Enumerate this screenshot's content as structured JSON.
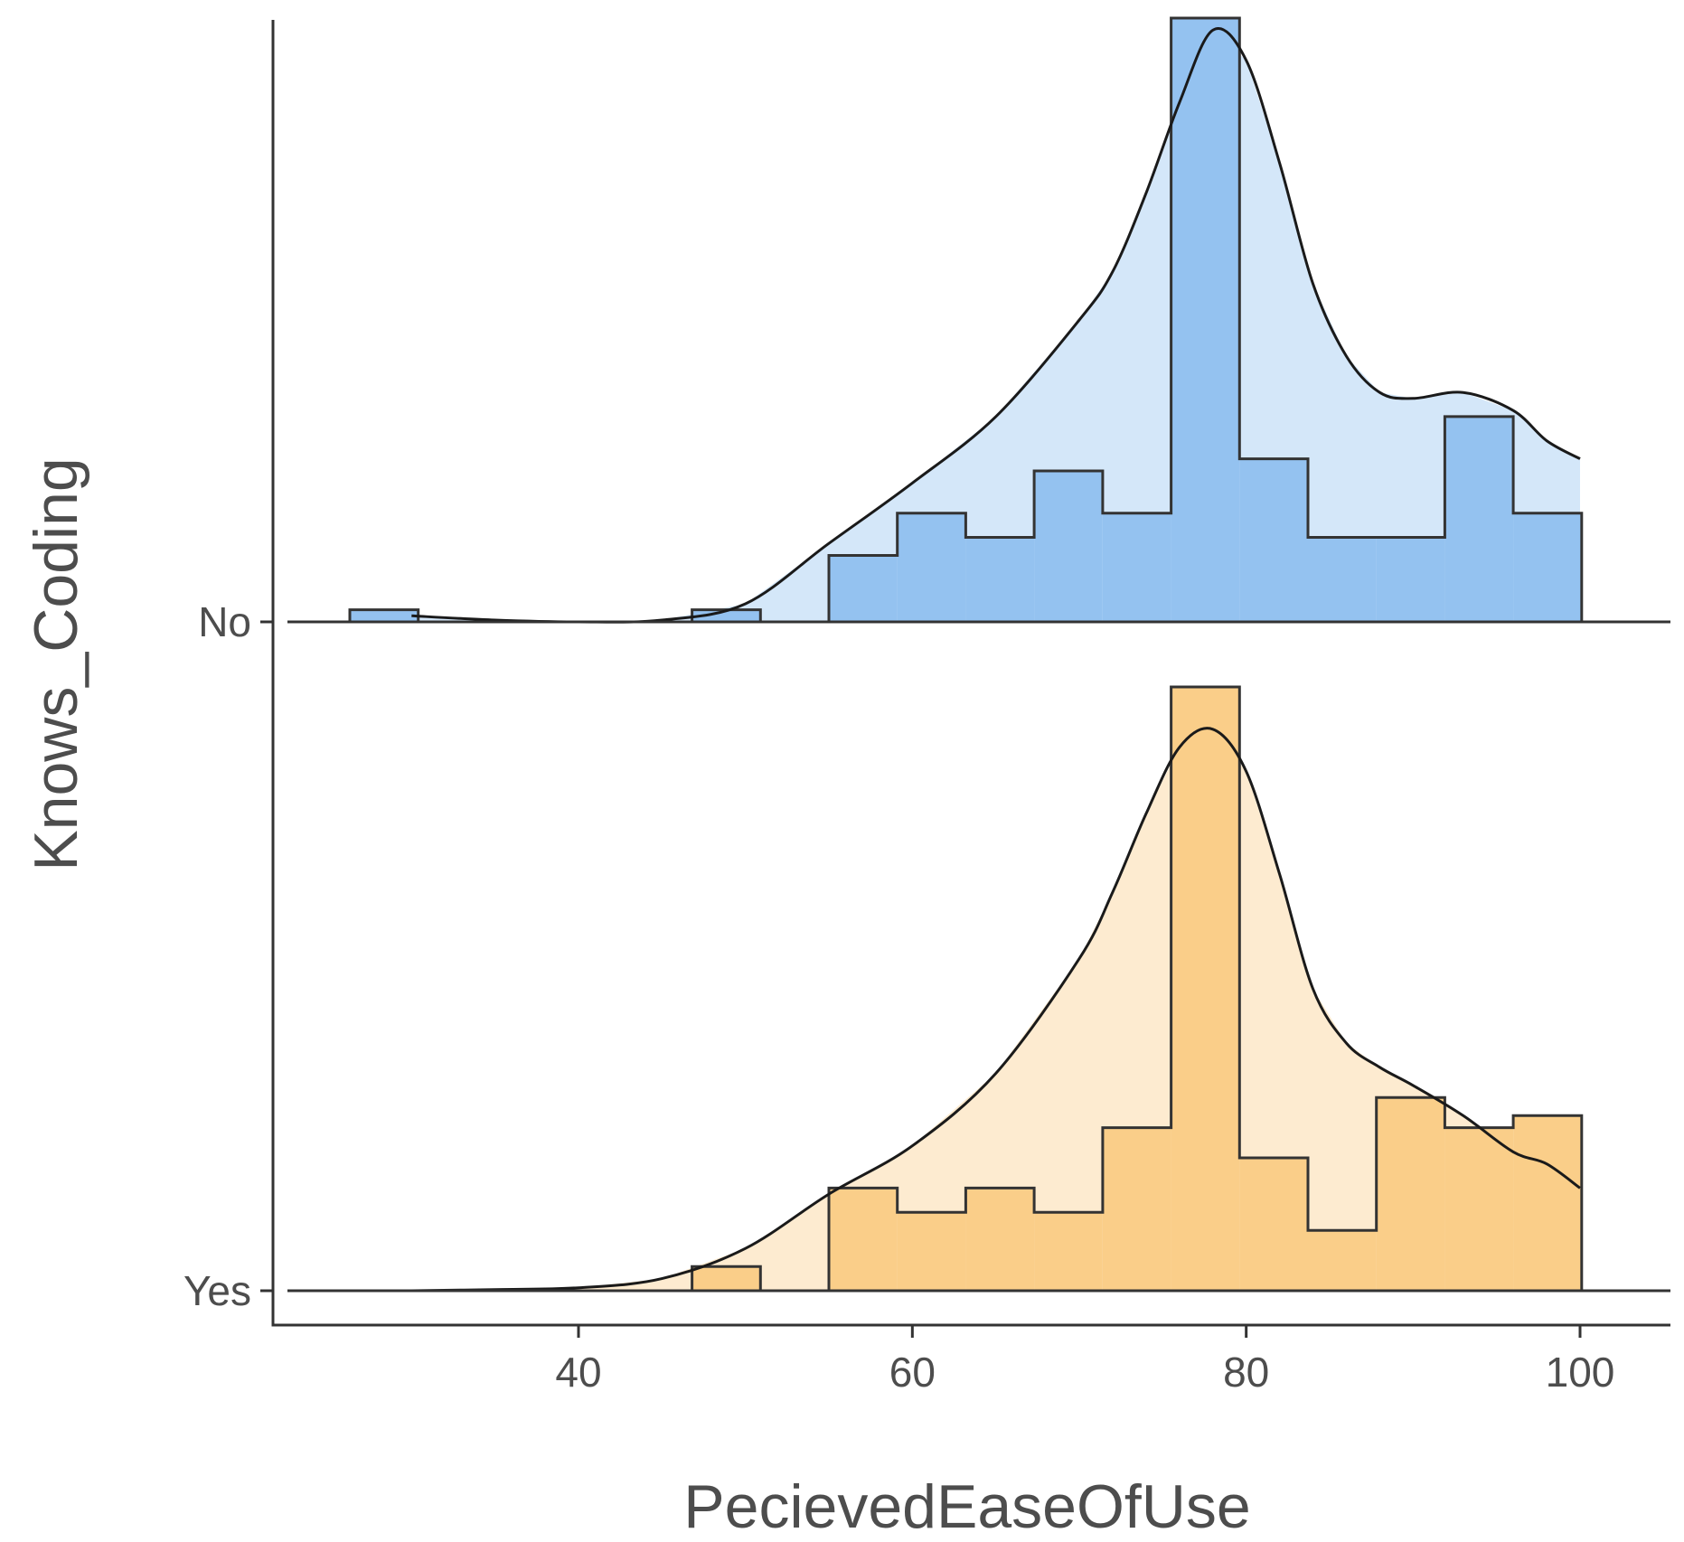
{
  "chart_data": {
    "type": "ridgeline histogram with density",
    "xlabel": "PecievedEaseOfUse",
    "ylabel": "Knows_Coding",
    "x_ticks": [
      40,
      60,
      80,
      100
    ],
    "xlim": [
      22,
      105
    ],
    "grid": false,
    "legend": "none",
    "bin_width": 4.1,
    "groups": [
      {
        "name": "No",
        "color": "#66a8ea",
        "bins_left": [
          26.3,
          30.4,
          34.5,
          38.6,
          42.7,
          46.8,
          50.9,
          55.0,
          59.1,
          63.2,
          67.3,
          71.4,
          75.5,
          79.6,
          83.7,
          87.8,
          91.9,
          96.0
        ],
        "bin_heights": [
          0.02,
          0.0,
          0.0,
          0.0,
          0.0,
          0.02,
          0.0,
          0.11,
          0.18,
          0.14,
          0.25,
          0.18,
          1.0,
          0.27,
          0.14,
          0.14,
          0.34,
          0.18
        ],
        "density_x": [
          30,
          35,
          40,
          45,
          50,
          55,
          60,
          65,
          70,
          72,
          74,
          76,
          78,
          80,
          82,
          84,
          86,
          88,
          90,
          93,
          96,
          98,
          100
        ],
        "density_y": [
          0.01,
          0.003,
          0.0,
          0.003,
          0.03,
          0.13,
          0.23,
          0.34,
          0.5,
          0.58,
          0.71,
          0.86,
          0.98,
          0.93,
          0.76,
          0.56,
          0.44,
          0.38,
          0.37,
          0.38,
          0.35,
          0.3,
          0.27
        ]
      },
      {
        "name": "Yes",
        "color": "#f8b957",
        "bins_left": [
          26.3,
          30.4,
          34.5,
          38.6,
          42.7,
          46.8,
          50.9,
          55.0,
          59.1,
          63.2,
          67.3,
          71.4,
          75.5,
          79.6,
          83.7,
          87.8,
          91.9,
          96.0
        ],
        "bin_heights": [
          0.0,
          0.0,
          0.0,
          0.0,
          0.0,
          0.04,
          0.0,
          0.17,
          0.13,
          0.17,
          0.13,
          0.27,
          1.0,
          0.22,
          0.1,
          0.32,
          0.27,
          0.29
        ],
        "density_x": [
          30,
          35,
          40,
          45,
          50,
          55,
          60,
          65,
          70,
          72,
          74,
          76,
          78,
          80,
          82,
          84,
          86,
          88,
          90,
          93,
          96,
          98,
          100
        ],
        "density_y": [
          0.0,
          0.002,
          0.005,
          0.02,
          0.07,
          0.16,
          0.24,
          0.36,
          0.55,
          0.66,
          0.79,
          0.9,
          0.93,
          0.86,
          0.69,
          0.5,
          0.41,
          0.37,
          0.34,
          0.29,
          0.23,
          0.21,
          0.17
        ]
      }
    ]
  }
}
